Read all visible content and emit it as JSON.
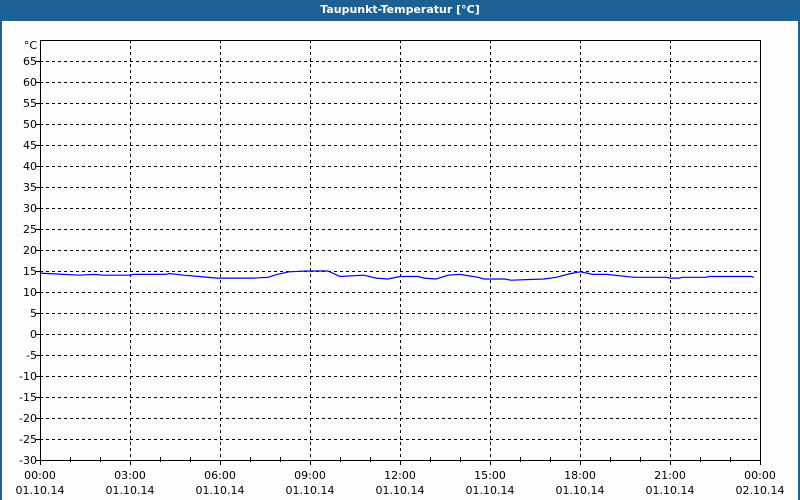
{
  "window": {
    "title": "Taupunkt-Temperatur [°C]"
  },
  "chart_data": {
    "type": "line",
    "title": "Taupunkt-Temperatur [°C]",
    "ylabel": "°C",
    "ylim": [
      -30,
      70
    ],
    "yticks": [
      65,
      60,
      55,
      50,
      45,
      40,
      35,
      30,
      25,
      20,
      15,
      10,
      5,
      0,
      -5,
      -10,
      -15,
      -20,
      -25,
      -30
    ],
    "xlim_hours": [
      0,
      24
    ],
    "xticks": [
      {
        "time": "00:00",
        "date": "01.10.14"
      },
      {
        "time": "03:00",
        "date": "01.10.14"
      },
      {
        "time": "06:00",
        "date": "01.10.14"
      },
      {
        "time": "09:00",
        "date": "01.10.14"
      },
      {
        "time": "12:00",
        "date": "01.10.14"
      },
      {
        "time": "15:00",
        "date": "01.10.14"
      },
      {
        "time": "18:00",
        "date": "01.10.14"
      },
      {
        "time": "21:00",
        "date": "01.10.14"
      },
      {
        "time": "00:00",
        "date": "02.10.14"
      }
    ],
    "grid": true,
    "line_color": "#0000ff",
    "series": [
      {
        "points": [
          [
            0,
            14.5
          ],
          [
            0.8,
            14.2
          ],
          [
            1.3,
            14.0
          ],
          [
            1.8,
            14.2
          ],
          [
            2.1,
            14.0
          ],
          [
            3.0,
            14.0
          ],
          [
            3.1,
            14.2
          ],
          [
            4.2,
            14.2
          ],
          [
            4.3,
            14.4
          ],
          [
            4.8,
            14.0
          ],
          [
            5.3,
            13.7
          ],
          [
            5.9,
            13.3
          ],
          [
            7.1,
            13.3
          ],
          [
            7.6,
            13.5
          ],
          [
            7.9,
            14.2
          ],
          [
            8.3,
            14.8
          ],
          [
            8.9,
            15.0
          ],
          [
            9.6,
            15.0
          ],
          [
            10.0,
            13.7
          ],
          [
            10.8,
            14.0
          ],
          [
            11.2,
            13.3
          ],
          [
            11.6,
            13.1
          ],
          [
            12.0,
            13.7
          ],
          [
            12.6,
            13.7
          ],
          [
            12.8,
            13.3
          ],
          [
            13.2,
            13.1
          ],
          [
            13.6,
            14.0
          ],
          [
            14.0,
            14.2
          ],
          [
            14.6,
            13.5
          ],
          [
            14.8,
            13.1
          ],
          [
            15.5,
            13.1
          ],
          [
            15.7,
            12.8
          ],
          [
            16.8,
            13.1
          ],
          [
            17.2,
            13.5
          ],
          [
            17.7,
            14.4
          ],
          [
            18.0,
            14.8
          ],
          [
            18.3,
            14.4
          ],
          [
            18.4,
            14.2
          ],
          [
            18.9,
            14.2
          ],
          [
            19.8,
            13.5
          ],
          [
            20.9,
            13.5
          ],
          [
            21.0,
            13.3
          ],
          [
            21.3,
            13.3
          ],
          [
            21.4,
            13.5
          ],
          [
            22.2,
            13.5
          ],
          [
            22.3,
            13.7
          ],
          [
            23.7,
            13.7
          ],
          [
            23.8,
            13.5
          ]
        ]
      }
    ]
  }
}
